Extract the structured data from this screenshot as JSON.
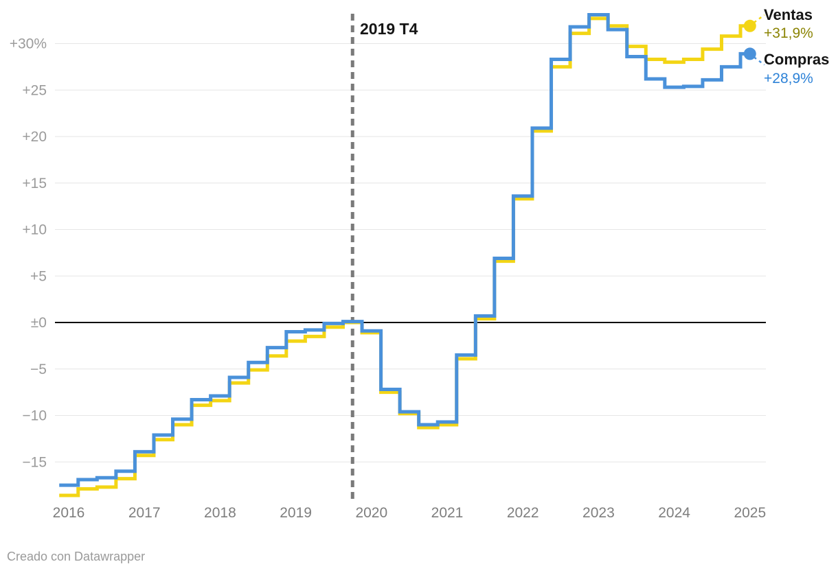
{
  "footer": {
    "text": "Creado con Datawrapper"
  },
  "chart": {
    "colors": {
      "ventas_line": "#F3D515",
      "compras_line": "#4A91DA",
      "ventas_label": "#8B8404",
      "compras_label": "#2D82D7",
      "gridline": "#E6E6E6",
      "zero_line": "#000000",
      "annotation_line": "#7A7A7A",
      "x_tick_text": "#7E7E7E",
      "y_tick_text": "#9B9B9B"
    }
  },
  "chart_data": {
    "type": "line",
    "subtype": "step",
    "title": "",
    "xlabel": "",
    "ylabel": "",
    "grid": true,
    "legend_position": "right-end-of-lines",
    "ylim": [
      -19.5,
      34
    ],
    "y_ticks": [
      {
        "v": 30,
        "label": "+30%"
      },
      {
        "v": 25,
        "label": "+25"
      },
      {
        "v": 20,
        "label": "+20"
      },
      {
        "v": 15,
        "label": "+15"
      },
      {
        "v": 10,
        "label": "+10"
      },
      {
        "v": 5,
        "label": "+5"
      },
      {
        "v": 0,
        "label": "±0"
      },
      {
        "v": -5,
        "label": "−5"
      },
      {
        "v": -10,
        "label": "−10"
      },
      {
        "v": -15,
        "label": "−15"
      }
    ],
    "x_tick_labels": [
      "2016",
      "2017",
      "2018",
      "2019",
      "2020",
      "2021",
      "2022",
      "2023",
      "2024",
      "2025"
    ],
    "x_quarters": [
      "2016 T1",
      "2016 T2",
      "2016 T3",
      "2016 T4",
      "2017 T1",
      "2017 T2",
      "2017 T3",
      "2017 T4",
      "2018 T1",
      "2018 T2",
      "2018 T3",
      "2018 T4",
      "2019 T1",
      "2019 T2",
      "2019 T3",
      "2019 T4",
      "2020 T1",
      "2020 T2",
      "2020 T3",
      "2020 T4",
      "2021 T1",
      "2021 T2",
      "2021 T3",
      "2021 T4",
      "2022 T1",
      "2022 T2",
      "2022 T3",
      "2022 T4",
      "2023 T1",
      "2023 T2",
      "2023 T3",
      "2023 T4",
      "2024 T1",
      "2024 T2",
      "2024 T3",
      "2024 T4",
      "2025 T1"
    ],
    "annotation": {
      "x": "2019 T4",
      "label": "2019 T4"
    },
    "series": [
      {
        "name": "Ventas",
        "end_label": "+31,9%",
        "color": "#F3D515",
        "values": [
          -18.6,
          -17.9,
          -17.7,
          -16.8,
          -14.3,
          -12.6,
          -11.0,
          -8.9,
          -8.4,
          -6.5,
          -5.1,
          -3.6,
          -2.0,
          -1.5,
          -0.5,
          0.0,
          -1.1,
          -7.5,
          -9.8,
          -11.3,
          -11.0,
          -3.9,
          0.4,
          6.6,
          13.3,
          20.6,
          27.5,
          31.1,
          32.7,
          31.9,
          29.7,
          28.3,
          28.0,
          28.3,
          29.4,
          30.8,
          31.9
        ]
      },
      {
        "name": "Compras",
        "end_label": "+28,9%",
        "color": "#4A91DA",
        "values": [
          -17.5,
          -16.9,
          -16.7,
          -16.0,
          -13.9,
          -12.1,
          -10.4,
          -8.3,
          -7.9,
          -5.9,
          -4.3,
          -2.7,
          -1.0,
          -0.8,
          -0.1,
          0.1,
          -0.9,
          -7.2,
          -9.6,
          -11.0,
          -10.7,
          -3.5,
          0.7,
          6.9,
          13.6,
          20.9,
          28.3,
          31.8,
          33.1,
          31.5,
          28.6,
          26.2,
          25.3,
          25.4,
          26.1,
          27.5,
          28.9
        ]
      }
    ]
  }
}
